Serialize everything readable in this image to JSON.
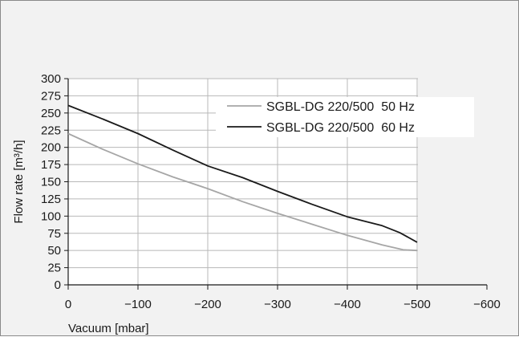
{
  "chart_data": {
    "type": "line",
    "title": "",
    "xlabel": "Vacuum [mbar]",
    "ylabel": "Flow rate [m³/h]",
    "xlim": [
      0,
      -600
    ],
    "ylim": [
      0,
      300
    ],
    "xticks": [
      "0",
      "−100",
      "−200",
      "−300",
      "−400",
      "−500",
      "−600"
    ],
    "yticks": [
      "0",
      "25",
      "50",
      "75",
      "100",
      "125",
      "150",
      "175",
      "200",
      "225",
      "250",
      "275",
      "300"
    ],
    "grid": true,
    "legend_position": "top-right",
    "series": [
      {
        "name": "SGBL-DG 220/500  50 Hz",
        "color": "#a6a6a6",
        "points": [
          [
            0,
            220
          ],
          [
            -50,
            197
          ],
          [
            -100,
            176
          ],
          [
            -150,
            157
          ],
          [
            -200,
            140
          ],
          [
            -250,
            121
          ],
          [
            -300,
            104
          ],
          [
            -350,
            88
          ],
          [
            -400,
            72
          ],
          [
            -450,
            58
          ],
          [
            -480,
            51
          ],
          [
            -500,
            50
          ]
        ]
      },
      {
        "name": "SGBL-DG 220/500  60 Hz",
        "color": "#1a1a1a",
        "points": [
          [
            0,
            261
          ],
          [
            -50,
            241
          ],
          [
            -100,
            220
          ],
          [
            -150,
            196
          ],
          [
            -200,
            173
          ],
          [
            -250,
            156
          ],
          [
            -300,
            136
          ],
          [
            -350,
            117
          ],
          [
            -400,
            99
          ],
          [
            -450,
            86
          ],
          [
            -475,
            76
          ],
          [
            -500,
            62
          ]
        ]
      }
    ]
  }
}
